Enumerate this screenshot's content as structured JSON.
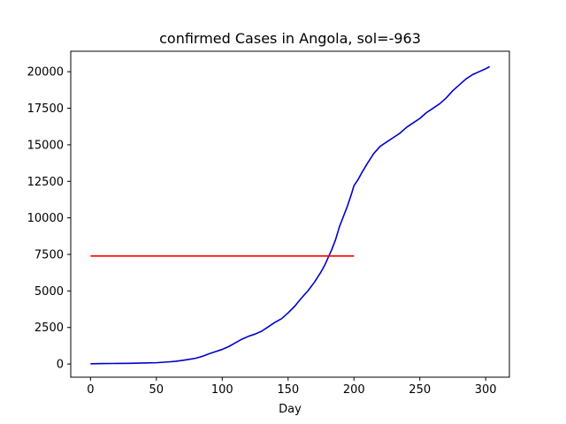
{
  "chart_data": {
    "type": "line",
    "title": "confirmed Cases in Angola, sol=-963",
    "xlabel": "Day",
    "ylabel": "",
    "xlim": [
      -15,
      318
    ],
    "ylim": [
      -900,
      21400
    ],
    "xticks": [
      0,
      50,
      100,
      150,
      200,
      250,
      300
    ],
    "yticks": [
      0,
      2500,
      5000,
      7500,
      10000,
      12500,
      15000,
      17500,
      20000
    ],
    "grid": false,
    "legend": "none",
    "series": [
      {
        "color": "#0000cc",
        "x": [
          0,
          10,
          20,
          30,
          40,
          50,
          55,
          60,
          65,
          70,
          75,
          80,
          85,
          90,
          95,
          100,
          105,
          110,
          115,
          120,
          125,
          130,
          135,
          140,
          145,
          150,
          155,
          160,
          165,
          170,
          175,
          178,
          180,
          183,
          186,
          189,
          192,
          195,
          198,
          200,
          203,
          206,
          210,
          215,
          220,
          225,
          230,
          235,
          240,
          245,
          250,
          255,
          260,
          265,
          270,
          275,
          280,
          285,
          290,
          295,
          300,
          303
        ],
        "y": [
          20,
          30,
          40,
          50,
          70,
          90,
          120,
          150,
          190,
          250,
          320,
          400,
          530,
          700,
          850,
          1000,
          1200,
          1450,
          1700,
          1900,
          2050,
          2250,
          2550,
          2850,
          3100,
          3500,
          3950,
          4500,
          5000,
          5600,
          6300,
          6800,
          7200,
          7800,
          8500,
          9400,
          10100,
          10800,
          11600,
          12200,
          12600,
          13100,
          13700,
          14400,
          14900,
          15200,
          15500,
          15800,
          16200,
          16500,
          16800,
          17200,
          17500,
          17800,
          18200,
          18700,
          19100,
          19500,
          19800,
          20000,
          20200,
          20350
        ]
      },
      {
        "color": "#ff0000",
        "x": [
          0,
          200
        ],
        "y": [
          7390,
          7390
        ]
      }
    ]
  }
}
